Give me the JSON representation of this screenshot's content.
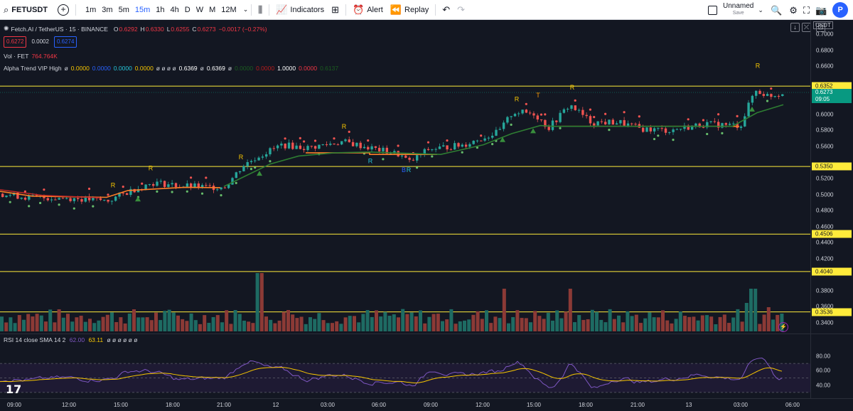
{
  "toolbar": {
    "symbol": "FETUSDT",
    "timeframes": [
      "1m",
      "3m",
      "5m",
      "15m",
      "1h",
      "4h",
      "D",
      "W",
      "M",
      "12M"
    ],
    "active_timeframe": "15m",
    "indicators_label": "Indicators",
    "alert_label": "Alert",
    "replay_label": "Replay",
    "layout_name": "Unnamed",
    "layout_save": "Save",
    "avatar_letter": "P"
  },
  "legend": {
    "title": "Fetch.AI / TetherUS · 15 · BINANCE",
    "o_label": "O",
    "o": "0.6292",
    "h_label": "H",
    "h": "0.6330",
    "l_label": "L",
    "l": "0.6255",
    "c_label": "C",
    "c": "0.6273",
    "change": "−0.0017 (−0.27%)",
    "bid": "0.6272",
    "spread": "0.0002",
    "ask": "0.6274",
    "vol_label": "Vol · FET",
    "vol_value": "764.764K",
    "alpha_label": "Alpha Trend VIP High",
    "alpha_values": [
      {
        "text": "ø",
        "color": "#d1d4dc"
      },
      {
        "text": "0.0000",
        "color": "#f7c600"
      },
      {
        "text": "0.0000",
        "color": "#2962ff"
      },
      {
        "text": "0.0000",
        "color": "#26c6da"
      },
      {
        "text": "0.0000",
        "color": "#f7c600"
      },
      {
        "text": "ø ø ø ø",
        "color": "#d1d4dc"
      },
      {
        "text": "0.6369",
        "color": "#ffffff"
      },
      {
        "text": "ø",
        "color": "#d1d4dc"
      },
      {
        "text": "0.6369",
        "color": "#ffffff"
      },
      {
        "text": "ø",
        "color": "#d1d4dc"
      },
      {
        "text": "0.0000",
        "color": "#1b5e20"
      },
      {
        "text": "0.0000",
        "color": "#b71c1c"
      },
      {
        "text": "1.0000",
        "color": "#ffffff"
      },
      {
        "text": "0.0000",
        "color": "#f23645"
      },
      {
        "text": "0.6137",
        "color": "#1b5e20"
      }
    ]
  },
  "price_axis": {
    "currency": "USDT",
    "top_value": "0.7000",
    "ticks": [
      "0.6800",
      "0.6600",
      "0.6000",
      "0.5800",
      "0.5600",
      "0.5200",
      "0.5000",
      "0.4800",
      "0.4600",
      "0.4400",
      "0.4200",
      "0.3800",
      "0.3600",
      "0.3400"
    ],
    "highlighted_levels": [
      "0.6352",
      "0.5350",
      "0.4506",
      "0.4040",
      "0.3536"
    ],
    "current_price": "0.6273",
    "countdown": "09:05"
  },
  "rsi": {
    "label": "RSI 14 close SMA 14 2",
    "value1": "62.00",
    "value2": "63.11",
    "extra": "ø ø ø ø ø ø",
    "ticks": [
      "80.00",
      "60.00",
      "40.00"
    ]
  },
  "time_axis": [
    "09:00",
    "12:00",
    "15:00",
    "18:00",
    "21:00",
    "12",
    "03:00",
    "06:00",
    "09:00",
    "12:00",
    "15:00",
    "18:00",
    "21:00",
    "13",
    "03:00",
    "06:00"
  ],
  "signal_labels": [
    "R",
    "R",
    "R",
    "R",
    "R",
    "B",
    "R",
    "R",
    "T",
    "R",
    "R"
  ],
  "colors": {
    "up": "#26a69a",
    "down": "#ef5350",
    "level_line": "#ffeb3b",
    "trend_line": "#2e7d32",
    "bg": "#131722"
  }
}
